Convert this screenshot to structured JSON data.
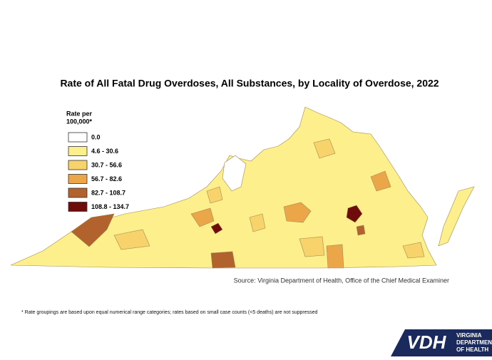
{
  "title": "Rate of All Fatal Drug Overdoses, All Substances, by Locality of Overdose, 2022",
  "legend": {
    "title": [
      "Rate per",
      "100,000*"
    ],
    "items": [
      {
        "label": "0.0",
        "color": "#ffffff"
      },
      {
        "label": "4.6 - 30.6",
        "color": "#fdf08c"
      },
      {
        "label": "30.7 - 56.6",
        "color": "#f8d36b"
      },
      {
        "label": "56.7 - 82.6",
        "color": "#eca64a"
      },
      {
        "label": "82.7 - 108.7",
        "color": "#b2622c"
      },
      {
        "label": "108.8 - 134.7",
        "color": "#6e0b0b"
      }
    ]
  },
  "source": "Source: Virginia Department of Health, Office of the Chief Medical Examiner",
  "footnote": "* Rate groupings are based upon equal numerical range categories; rates based on small case counts (<5 deaths) are not suppressed",
  "logo": {
    "mark": "VDH",
    "lines": [
      "VIRGINIA",
      "DEPARTMENT",
      "OF HEALTH"
    ]
  }
}
